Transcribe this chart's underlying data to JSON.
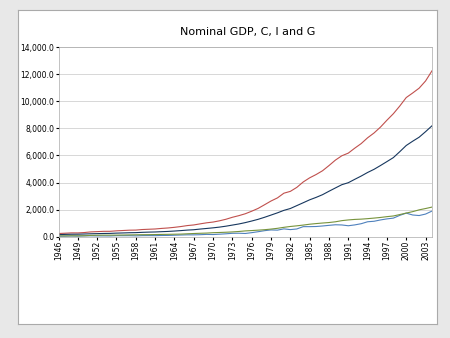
{
  "title": "Nominal GDP, C, I and G",
  "years": [
    1946,
    1947,
    1948,
    1949,
    1950,
    1951,
    1952,
    1953,
    1954,
    1955,
    1956,
    1957,
    1958,
    1959,
    1960,
    1961,
    1962,
    1963,
    1964,
    1965,
    1966,
    1967,
    1968,
    1969,
    1970,
    1971,
    1972,
    1973,
    1974,
    1975,
    1976,
    1977,
    1978,
    1979,
    1980,
    1981,
    1982,
    1983,
    1984,
    1985,
    1986,
    1987,
    1988,
    1989,
    1990,
    1991,
    1992,
    1993,
    1994,
    1995,
    1996,
    1997,
    1998,
    1999,
    2000,
    2001,
    2002,
    2003,
    2004
  ],
  "gdp": [
    228.2,
    249.9,
    274.8,
    272.8,
    300.2,
    347.3,
    367.7,
    389.7,
    391.1,
    426.2,
    450.1,
    474.9,
    482.0,
    522.5,
    543.3,
    563.3,
    605.1,
    638.6,
    685.8,
    743.7,
    815.0,
    861.7,
    942.5,
    1019.9,
    1075.9,
    1167.8,
    1282.4,
    1428.5,
    1548.8,
    1688.9,
    1877.6,
    2086.0,
    2356.6,
    2632.1,
    2862.5,
    3211.0,
    3345.0,
    3638.1,
    4040.7,
    4346.7,
    4590.2,
    4870.2,
    5252.6,
    5657.7,
    5979.6,
    6174.0,
    6539.3,
    6878.7,
    7308.8,
    7664.1,
    8100.2,
    8608.5,
    9089.2,
    9660.6,
    10284.8,
    10621.8,
    10977.5,
    11510.7,
    12263.8
  ],
  "consumption": [
    144.0,
    162.0,
    174.9,
    178.3,
    192.0,
    208.0,
    219.0,
    232.0,
    238.0,
    257.9,
    270.0,
    285.2,
    293.2,
    315.8,
    331.7,
    342.0,
    363.4,
    382.7,
    411.4,
    443.8,
    480.9,
    507.8,
    558.0,
    601.7,
    648.5,
    701.9,
    770.7,
    852.4,
    933.4,
    1034.4,
    1151.9,
    1278.6,
    1428.5,
    1592.2,
    1757.1,
    1941.1,
    2077.3,
    2290.6,
    2503.3,
    2720.3,
    2899.7,
    3100.2,
    3353.6,
    3598.5,
    3839.9,
    3986.1,
    4235.3,
    4477.9,
    4743.3,
    4975.8,
    5256.8,
    5547.4,
    5843.3,
    6282.5,
    6739.4,
    7055.0,
    7350.7,
    7760.9,
    8195.9
  ],
  "investment": [
    30.6,
    34.0,
    46.0,
    35.7,
    53.8,
    59.3,
    51.9,
    52.6,
    48.4,
    67.4,
    66.1,
    67.4,
    55.4,
    72.3,
    74.8,
    71.7,
    83.1,
    87.2,
    101.1,
    118.0,
    131.3,
    128.6,
    141.2,
    162.9,
    152.4,
    178.2,
    207.6,
    244.5,
    249.4,
    230.2,
    292.0,
    361.5,
    438.0,
    492.9,
    477.9,
    572.4,
    517.2,
    564.3,
    735.6,
    736.2,
    746.5,
    785.0,
    832.4,
    874.9,
    861.0,
    802.6,
    864.8,
    953.3,
    1097.5,
    1134.0,
    1232.0,
    1310.0,
    1367.0,
    1572.0,
    1735.5,
    1598.4,
    1557.6,
    1667.0,
    1888.0
  ],
  "gov_spend": [
    52.6,
    53.9,
    60.6,
    59.7,
    63.2,
    88.7,
    100.4,
    107.6,
    107.0,
    110.1,
    116.4,
    125.4,
    133.4,
    140.4,
    143.5,
    151.6,
    161.4,
    168.2,
    176.3,
    185.1,
    208.0,
    228.7,
    245.4,
    260.5,
    288.1,
    304.2,
    322.6,
    346.2,
    378.2,
    420.7,
    446.5,
    476.8,
    510.1,
    556.2,
    612.5,
    686.6,
    748.4,
    796.9,
    851.8,
    915.7,
    962.7,
    1003.8,
    1040.7,
    1095.6,
    1180.2,
    1232.2,
    1271.0,
    1291.5,
    1327.1,
    1369.3,
    1416.2,
    1475.3,
    1525.1,
    1631.0,
    1741.0,
    1845.9,
    1978.6,
    2075.7,
    2183.4
  ],
  "gdp_color": "#c0504d",
  "consumption_color": "#17375e",
  "investment_color": "#4f81bd",
  "gov_color": "#77933c",
  "background_color": "#ffffff",
  "plot_background": "#ffffff",
  "outer_bg": "#e8e8e8",
  "ylim": [
    0,
    14000
  ],
  "yticks": [
    0,
    2000,
    4000,
    6000,
    8000,
    10000,
    12000,
    14000
  ],
  "tick_years": [
    1946,
    1949,
    1952,
    1955,
    1958,
    1961,
    1964,
    1967,
    1970,
    1973,
    1976,
    1979,
    1982,
    1985,
    1988,
    1991,
    1994,
    1997,
    2000,
    2003
  ]
}
